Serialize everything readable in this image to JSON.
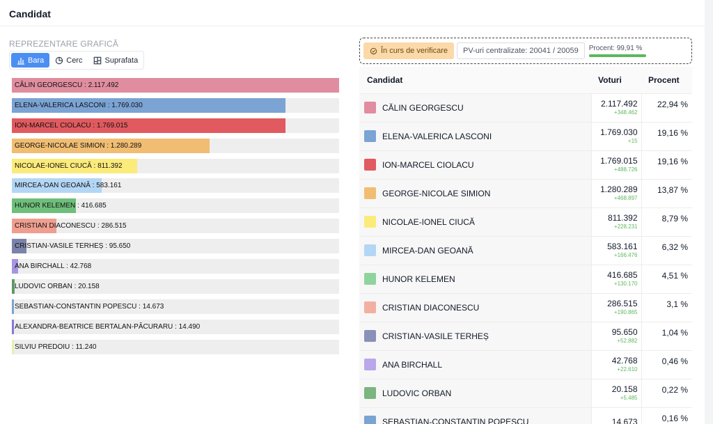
{
  "header": {
    "title": "Candidat"
  },
  "left": {
    "section_label": "REPREZENTARE GRAFICĂ",
    "tabs": [
      {
        "label": "Bara",
        "icon": "bar-chart-icon",
        "active": true
      },
      {
        "label": "Cerc",
        "icon": "pie-chart-icon",
        "active": false
      },
      {
        "label": "Suprafata",
        "icon": "treemap-icon",
        "active": false
      }
    ]
  },
  "status": {
    "verification_label": "În curs de verificare",
    "pv_label": "PV-uri centralizate: 20041 / 20059",
    "percent_label": "Procent: 99,91 %",
    "percent_value": 99.91
  },
  "table": {
    "headers": {
      "candidate": "Candidat",
      "votes": "Voturi",
      "percent": "Procent"
    }
  },
  "chart_data": {
    "type": "bar",
    "orientation": "horizontal",
    "categories": [
      "CĂLIN GEORGESCU",
      "ELENA-VALERICA LASCONI",
      "ION-MARCEL CIOLACU",
      "GEORGE-NICOLAE SIMION",
      "NICOLAE-IONEL CIUCĂ",
      "MIRCEA-DAN GEOANĂ",
      "HUNOR KELEMEN",
      "CRISTIAN DIACONESCU",
      "CRISTIAN-VASILE TERHEȘ",
      "ANA BIRCHALL",
      "LUDOVIC ORBAN",
      "SEBASTIAN-CONSTANTIN POPESCU",
      "ALEXANDRA-BEATRICE BERTALAN-PĂCURARU",
      "SILVIU PREDOIU"
    ],
    "values": [
      2117492,
      1769030,
      1769015,
      1280289,
      811392,
      583161,
      416685,
      286515,
      95650,
      42768,
      20158,
      14673,
      14490,
      11240
    ],
    "value_labels": [
      "2.117.492",
      "1.769.030",
      "1.769.015",
      "1.280.289",
      "811.392",
      "583.161",
      "416.685",
      "286.515",
      "95.650",
      "42.768",
      "20.158",
      "14.673",
      "14.490",
      "11.240"
    ],
    "colors": [
      "#e08d9f",
      "#7ba3d4",
      "#e05a5f",
      "#f0bd72",
      "#fbeb7b",
      "#b3d6f4",
      "#6fbf7b",
      "#ef9f8f",
      "#7b83aa",
      "#a795e1",
      "#5e9a63",
      "#7ba3d4",
      "#8a76d9",
      "#e8f0b0"
    ]
  },
  "results": [
    {
      "name": "CĂLIN GEORGESCU",
      "color": "#e08d9f",
      "votes": "2.117.492",
      "delta": "+348.462",
      "percent": "22,94 %"
    },
    {
      "name": "ELENA-VALERICA LASCONI",
      "color": "#7ba3d4",
      "votes": "1.769.030",
      "delta": "+15",
      "percent": "19,16 %"
    },
    {
      "name": "ION-MARCEL CIOLACU",
      "color": "#e05a5f",
      "votes": "1.769.015",
      "delta": "+488.726",
      "percent": "19,16 %"
    },
    {
      "name": "GEORGE-NICOLAE SIMION",
      "color": "#f0bd72",
      "votes": "1.280.289",
      "delta": "+468.897",
      "percent": "13,87 %"
    },
    {
      "name": "NICOLAE-IONEL CIUCĂ",
      "color": "#fbeb7b",
      "votes": "811.392",
      "delta": "+228.231",
      "percent": "8,79 %"
    },
    {
      "name": "MIRCEA-DAN GEOANĂ",
      "color": "#b3d6f4",
      "votes": "583.161",
      "delta": "+166.476",
      "percent": "6,32 %"
    },
    {
      "name": "HUNOR KELEMEN",
      "color": "#8fd49d",
      "votes": "416.685",
      "delta": "+130.170",
      "percent": "4,51 %"
    },
    {
      "name": "CRISTIAN DIACONESCU",
      "color": "#f2b0a1",
      "votes": "286.515",
      "delta": "+190.865",
      "percent": "3,1 %"
    },
    {
      "name": "CRISTIAN-VASILE TERHEȘ",
      "color": "#8a91b8",
      "votes": "95.650",
      "delta": "+52.882",
      "percent": "1,04 %"
    },
    {
      "name": "ANA BIRCHALL",
      "color": "#b9a7ea",
      "votes": "42.768",
      "delta": "+22.610",
      "percent": "0,46 %"
    },
    {
      "name": "LUDOVIC ORBAN",
      "color": "#7bb580",
      "votes": "20.158",
      "delta": "+5.485",
      "percent": "0,22 %"
    },
    {
      "name": "SEBASTIAN-CONSTANTIN POPESCU",
      "color": "#7ba3d4",
      "votes": "14.673",
      "delta": "",
      "percent": "0,16 %"
    }
  ]
}
